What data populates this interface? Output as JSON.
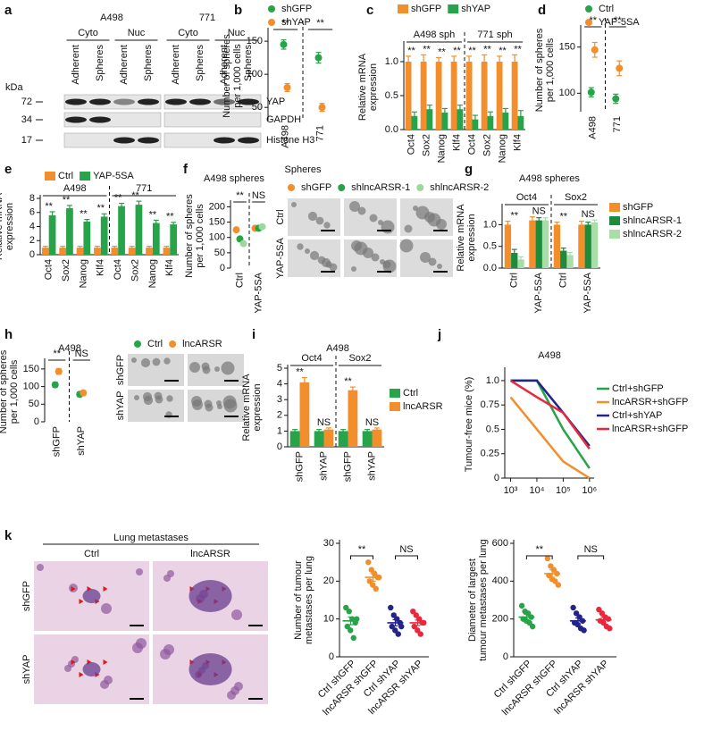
{
  "chart_data": [
    {
      "type": "blot",
      "panel": "a",
      "cell_lines": [
        "A498",
        "771"
      ],
      "fractions": [
        "Cyto",
        "Nuc",
        "Cyto",
        "Nuc"
      ],
      "conditions": [
        "Adherent",
        "Spheres",
        "Adherent",
        "Spheres",
        "Adherent",
        "Spheres",
        "Adherent",
        "Spheres"
      ],
      "unit": "kDa",
      "markers": [
        72,
        34,
        17
      ],
      "proteins": [
        "YAP",
        "GAPDH",
        "Histone H3"
      ]
    },
    {
      "type": "dot",
      "panel": "b",
      "ylabel": "Number of spheres per 1,000 cells",
      "xlabel": "Spheres",
      "categories": [
        "A498",
        "771"
      ],
      "series": [
        {
          "name": "shGFP",
          "color": "#27a34a",
          "values": [
            145,
            125
          ],
          "errors": [
            7,
            8
          ]
        },
        {
          "name": "shYAP",
          "color": "#f28e2b",
          "values": [
            80,
            50
          ],
          "errors": [
            6,
            6
          ]
        }
      ],
      "ylim": [
        30,
        165
      ],
      "yticks": [
        50,
        100,
        150
      ],
      "sig": [
        "**",
        "**"
      ]
    },
    {
      "type": "bar",
      "panel": "c",
      "ylabel": "Relative mRNA expression",
      "groups": [
        "A498 sph",
        "771 sph"
      ],
      "categories": [
        "Oct4",
        "Sox2",
        "Nanog",
        "Klf4",
        "Oct4",
        "Sox2",
        "Nanog",
        "Klf4"
      ],
      "series": [
        {
          "name": "shGFP",
          "color": "#f28e2b",
          "values": [
            1,
            1,
            1,
            1,
            1,
            1,
            1,
            1
          ],
          "errors": [
            0.08,
            0.1,
            0.06,
            0.08,
            0.08,
            0.1,
            0.08,
            0.1
          ]
        },
        {
          "name": "shYAP",
          "color": "#27a34a",
          "values": [
            0.2,
            0.3,
            0.25,
            0.3,
            0.15,
            0.2,
            0.25,
            0.2
          ],
          "errors": [
            0.06,
            0.06,
            0.06,
            0.06,
            0.06,
            0.06,
            0.06,
            0.08
          ]
        }
      ],
      "ylim": [
        0,
        1.25
      ],
      "yticks": [
        {
          "value": 0,
          "label": "0.0"
        },
        {
          "value": 0.5,
          "label": "0.5"
        },
        {
          "value": 1,
          "label": "1.0"
        }
      ],
      "sig": [
        "**",
        "**",
        "**",
        "**",
        "**",
        "**",
        "**",
        "**"
      ]
    },
    {
      "type": "dot",
      "panel": "d",
      "ylabel": "Number of spheres per 1,000 cells",
      "categories": [
        "A498",
        "771"
      ],
      "series": [
        {
          "name": "Ctrl",
          "color": "#27a34a",
          "values": [
            101,
            94
          ],
          "errors": [
            5,
            5
          ]
        },
        {
          "name": "YAP-5SA",
          "color": "#f28e2b",
          "values": [
            147,
            127
          ],
          "errors": [
            8,
            8
          ]
        }
      ],
      "ylim": [
        80,
        170
      ],
      "yticks": [
        100,
        150
      ],
      "sig": [
        "**",
        "**"
      ]
    },
    {
      "type": "bar",
      "panel": "e",
      "ylabel": "Relative mRNA expression",
      "groups": [
        "A498",
        "771"
      ],
      "categories": [
        "Oct4",
        "Sox2",
        "Nanog",
        "Klf4",
        "Oct4",
        "Sox2",
        "Nanog",
        "Klf4"
      ],
      "series": [
        {
          "name": "Ctrl",
          "color": "#f28e2b",
          "values": [
            1,
            1,
            1,
            1,
            1,
            1,
            1,
            1
          ],
          "errors": [
            0.2,
            0.2,
            0.2,
            0.2,
            0.2,
            0.2,
            0.2,
            0.2
          ]
        },
        {
          "name": "YAP-5SA",
          "color": "#27a34a",
          "values": [
            5.6,
            6.6,
            4.7,
            5.4,
            6.9,
            7.1,
            4.5,
            4.3
          ],
          "errors": [
            0.5,
            0.4,
            0.3,
            0.4,
            0.4,
            0.5,
            0.4,
            0.3
          ]
        }
      ],
      "ylim": [
        0,
        8
      ],
      "yticks": [
        0,
        2,
        4,
        6,
        8
      ],
      "sig": [
        "**",
        "**",
        "**",
        "**",
        "**",
        "**",
        "**",
        "**"
      ]
    },
    {
      "type": "dot",
      "panel": "f",
      "title": "A498 spheres",
      "ylabel": "Number of spheres per 1,000 cells",
      "categories": [
        "Ctrl",
        "YAP-5SA"
      ],
      "series": [
        {
          "name": "shGFP",
          "color": "#f28e2b",
          "values": [
            125,
            130
          ],
          "errors": [
            6,
            6
          ]
        },
        {
          "name": "shlncARSR-1",
          "color": "#27a34a",
          "values": [
            95,
            130
          ],
          "errors": [
            6,
            6
          ]
        },
        {
          "name": "shlncARSR-2",
          "color": "#9ad99a",
          "values": [
            80,
            135
          ],
          "errors": [
            6,
            6
          ]
        }
      ],
      "ylim": [
        0,
        210
      ],
      "yticks": [
        0,
        50,
        100,
        150,
        200
      ],
      "sig": [
        "**",
        "NS"
      ]
    },
    {
      "type": "image",
      "rows": [
        "Ctrl",
        "YAP-5SA"
      ]
    },
    {
      "type": "bar",
      "panel": "g",
      "title": "A498 spheres",
      "ylabel": "Relative mRNA expression",
      "groups": [
        "Oct4",
        "Sox2"
      ],
      "categories": [
        "Ctrl",
        "YAP-5SA",
        "Ctrl",
        "YAP-5SA"
      ],
      "series": [
        {
          "name": "shGFP",
          "color": "#f28e2b",
          "values": [
            1,
            1.1,
            1,
            1
          ],
          "errors": [
            0.08,
            0.08,
            0.06,
            0.08
          ]
        },
        {
          "name": "shlncARSR-1",
          "color": "#1e8a3c",
          "values": [
            0.35,
            1.1,
            0.4,
            1
          ],
          "errors": [
            0.08,
            0.06,
            0.06,
            0.06
          ]
        },
        {
          "name": "shlncARSR-2",
          "color": "#a8dfa8",
          "values": [
            0.2,
            1.1,
            0.3,
            1.05
          ],
          "errors": [
            0.06,
            0.06,
            0.06,
            0.06
          ]
        }
      ],
      "ylim": [
        0,
        1.4
      ],
      "yticks": [
        {
          "value": 0,
          "label": "0.0"
        },
        {
          "value": 0.5,
          "label": "0.5"
        },
        {
          "value": 1,
          "label": "1.0"
        }
      ],
      "sig": [
        "**",
        "NS",
        "**",
        "NS"
      ]
    },
    {
      "type": "dot",
      "panel": "h",
      "title": "A498",
      "ylabel": "Number of spheres per 1,000 cells",
      "categories": [
        "shGFP",
        "shYAP"
      ],
      "series": [
        {
          "name": "Ctrl",
          "color": "#27a34a",
          "values": [
            105,
            78
          ],
          "errors": [
            7,
            6
          ]
        },
        {
          "name": "lncARSR",
          "color": "#f28e2b",
          "values": [
            143,
            82
          ],
          "errors": [
            8,
            6
          ]
        }
      ],
      "ylim": [
        0,
        170
      ],
      "yticks": [
        0,
        50,
        100,
        150
      ],
      "sig": [
        "**",
        "NS"
      ]
    },
    {
      "type": "image",
      "rows": [
        "shGFP",
        "shYAP"
      ]
    },
    {
      "type": "bar",
      "panel": "i",
      "title": "A498",
      "ylabel": "Relative mRNA expression",
      "groups": [
        "Oct4",
        "Sox2"
      ],
      "categories": [
        "shGFP",
        "shYAP",
        "shGFP",
        "shYAP"
      ],
      "series": [
        {
          "name": "Ctrl",
          "color": "#27a34a",
          "values": [
            1,
            1,
            1,
            1
          ],
          "errors": [
            0.1,
            0.1,
            0.1,
            0.1
          ]
        },
        {
          "name": "lncARSR",
          "color": "#f28e2b",
          "values": [
            4.1,
            1.1,
            3.6,
            1.1
          ],
          "errors": [
            0.3,
            0.1,
            0.2,
            0.1
          ]
        }
      ],
      "ylim": [
        0,
        5
      ],
      "yticks": [
        0,
        1,
        2,
        3,
        4,
        5
      ],
      "sig": [
        "**",
        "NS",
        "**",
        "NS"
      ]
    },
    {
      "type": "line",
      "panel": "j",
      "title": "A498",
      "ylabel": "Tumour-free mice (%)",
      "log_x": true,
      "x": [
        1000,
        10000,
        100000,
        1000000
      ],
      "xlim": [
        600,
        1500000
      ],
      "xticks": [
        {
          "value": 1000,
          "label": "10³"
        },
        {
          "value": 10000,
          "label": "10⁴"
        },
        {
          "value": 100000,
          "label": "10⁵"
        },
        {
          "value": 1000000,
          "label": "10⁶"
        }
      ],
      "ylim": [
        0,
        1.1
      ],
      "yticks": [
        0,
        0.25,
        0.5,
        0.75,
        {
          "value": 1,
          "label": "1.0"
        }
      ],
      "series": [
        {
          "name": "Ctrl+shGFP",
          "color": "#27a34a",
          "values": [
            1,
            1,
            0.5,
            0.1
          ]
        },
        {
          "name": "lncARSR+shGFP",
          "color": "#f28e2b",
          "values": [
            0.83,
            0.5,
            0.17,
            0
          ]
        },
        {
          "name": "Ctrl+shYAP",
          "color": "#23238c",
          "values": [
            1,
            1,
            0.67,
            0.33
          ]
        },
        {
          "name": "lncARSR+shGFP",
          "color": "#e8283c",
          "values": [
            1,
            0.83,
            0.67,
            0.3
          ]
        }
      ]
    },
    {
      "type": "image",
      "panel": "k",
      "title": "Lung metastases",
      "columns": [
        "Ctrl",
        "lncARSR"
      ],
      "rows": [
        "shGFP",
        "shYAP"
      ]
    },
    {
      "type": "scatter",
      "ylabel": "Number of tumour metastases per lung",
      "categories": [
        "Ctrl shGFP",
        "lncARSR shGFP",
        "Ctrl shYAP",
        "lncARSR shYAP"
      ],
      "colors": [
        "#27a34a",
        "#f28e2b",
        "#23238c",
        "#e8283c"
      ],
      "points": [
        [
          13,
          12,
          10,
          9,
          8,
          7,
          5,
          10
        ],
        [
          25,
          23,
          22,
          21,
          20,
          19,
          18,
          21
        ],
        [
          13,
          11,
          10,
          9,
          8,
          7,
          6,
          8
        ],
        [
          12,
          11,
          10,
          9,
          8,
          7,
          6,
          9
        ]
      ],
      "means": [
        9.5,
        21,
        9,
        9
      ],
      "errors": [
        1,
        1,
        0.8,
        0.7
      ],
      "ylim": [
        0,
        30
      ],
      "yticks": [
        0,
        10,
        20,
        30
      ],
      "sig": [
        "**",
        "NS"
      ]
    },
    {
      "type": "scatter",
      "ylabel": "Diameter of largest tumour metastases per lung",
      "categories": [
        "Ctrl shGFP",
        "lncARSR shGFP",
        "Ctrl shYAP",
        "lncARSR shYAP"
      ],
      "colors": [
        "#27a34a",
        "#f28e2b",
        "#23238c",
        "#e8283c"
      ],
      "points": [
        [
          270,
          240,
          230,
          210,
          200,
          190,
          180,
          160
        ],
        [
          520,
          480,
          460,
          440,
          430,
          410,
          400,
          380
        ],
        [
          260,
          230,
          210,
          190,
          180,
          170,
          150,
          140
        ],
        [
          250,
          230,
          210,
          200,
          190,
          180,
          160,
          150
        ]
      ],
      "means": [
        210,
        440,
        190,
        195
      ],
      "errors": [
        15,
        20,
        15,
        15
      ],
      "ylim": [
        0,
        600
      ],
      "yticks": [
        0,
        200,
        400,
        600
      ],
      "sig": [
        "**",
        "NS"
      ]
    }
  ]
}
